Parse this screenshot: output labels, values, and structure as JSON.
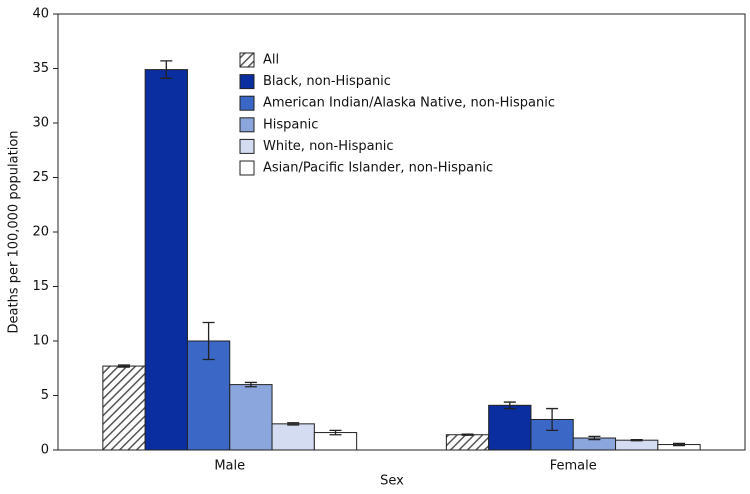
{
  "chart_data": {
    "type": "bar",
    "x_label": "Sex",
    "y_label": "Deaths per 100,000 population",
    "categories": [
      "Male",
      "Female"
    ],
    "series": [
      {
        "name": "All",
        "color": "#555555",
        "pattern": "hatch",
        "values": [
          7.7,
          1.4
        ],
        "errors": [
          0.1,
          0.05
        ]
      },
      {
        "name": "Black, non-Hispanic",
        "color": "#0a2ea0",
        "values": [
          34.9,
          4.1
        ],
        "errors": [
          0.8,
          0.3
        ]
      },
      {
        "name": "American Indian/Alaska Native, non-Hispanic",
        "color": "#3b67c6",
        "values": [
          10.0,
          2.8
        ],
        "errors": [
          1.7,
          1.0
        ]
      },
      {
        "name": "Hispanic",
        "color": "#8ba5dd",
        "values": [
          6.0,
          1.1
        ],
        "errors": [
          0.2,
          0.15
        ]
      },
      {
        "name": "White, non-Hispanic",
        "color": "#d4dcf1",
        "values": [
          2.4,
          0.9
        ],
        "errors": [
          0.1,
          0.05
        ]
      },
      {
        "name": "Asian/Pacific Islander, non-Hispanic",
        "color": "#ffffff",
        "values": [
          1.6,
          0.5
        ],
        "errors": [
          0.2,
          0.1
        ]
      }
    ],
    "ylim": [
      0,
      40
    ],
    "yticks": [
      0,
      5,
      10,
      15,
      20,
      25,
      30,
      35,
      40
    ],
    "legend": "upper-center"
  }
}
